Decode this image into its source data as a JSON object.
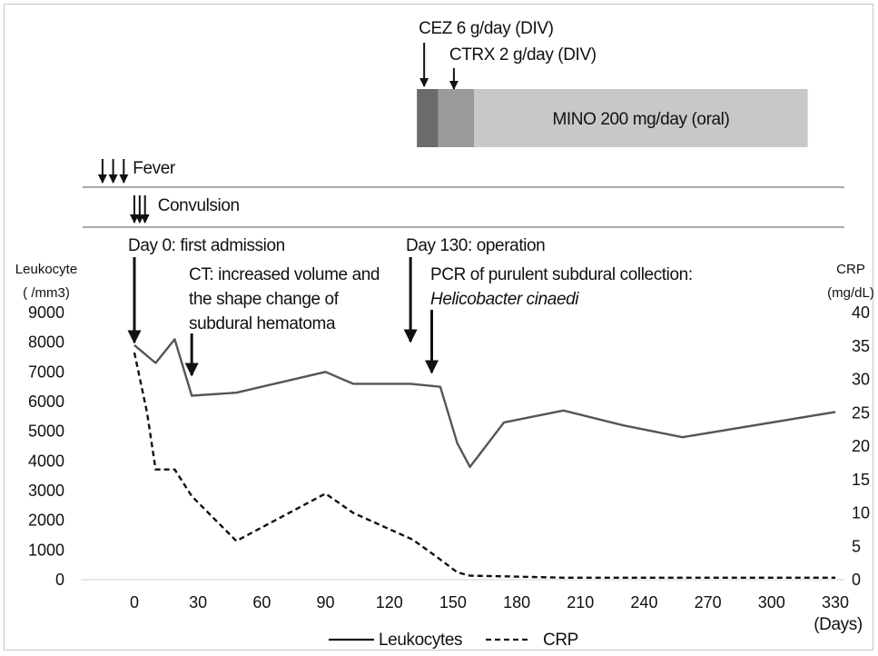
{
  "chart_data": {
    "type": "line",
    "x_label": "(Days)",
    "x_ticks": [
      0,
      30,
      60,
      90,
      120,
      150,
      180,
      210,
      240,
      270,
      300,
      330
    ],
    "x_range": [
      -25,
      330
    ],
    "left_axis": {
      "title_line1": "Leukocyte",
      "title_line2": "( /mm3)",
      "ticks": [
        0,
        1000,
        2000,
        3000,
        4000,
        5000,
        6000,
        7000,
        8000,
        9000
      ],
      "range": [
        0,
        9000
      ]
    },
    "right_axis": {
      "title_line1": "CRP",
      "title_line2": "(mg/dL)",
      "ticks": [
        0,
        5,
        10,
        15,
        20,
        25,
        30,
        35,
        40
      ],
      "range": [
        0,
        40
      ]
    },
    "series": [
      {
        "name": "Leukocytes",
        "axis": "left",
        "style": "solid",
        "x": [
          0,
          10,
          19,
          27,
          48,
          90,
          103,
          130,
          144,
          152,
          158,
          174,
          202,
          230,
          258,
          330
        ],
        "y": [
          7900,
          7300,
          8100,
          6200,
          6300,
          7000,
          6600,
          6600,
          6500,
          4600,
          3800,
          5300,
          5700,
          5200,
          4800,
          5650
        ]
      },
      {
        "name": "CRP",
        "axis": "right",
        "style": "dashed",
        "x": [
          0,
          6,
          10,
          19,
          27,
          48,
          90,
          103,
          131,
          142,
          152,
          158,
          174,
          202,
          330
        ],
        "y": [
          34,
          25,
          16.5,
          16.5,
          12.5,
          5.8,
          12.9,
          10,
          6,
          3.5,
          1.1,
          0.6,
          0.5,
          0.3,
          0.3
        ]
      }
    ],
    "legend": {
      "placement": "bottom",
      "items": [
        {
          "label": "Leukocytes",
          "style": "solid"
        },
        {
          "label": "CRP",
          "style": "dashed"
        }
      ]
    },
    "treatments": [
      {
        "label": "CEZ 6 g/day (DIV)",
        "start": 133,
        "end": 143,
        "color": "#6b6b6b",
        "show_in_bar": false
      },
      {
        "label": "CTRX 2 g/day (DIV)",
        "start": 143,
        "end": 160,
        "color": "#9a9a9a",
        "show_in_bar": false
      },
      {
        "label": "MINO 200 mg/day (oral)",
        "start": 160,
        "end": 317,
        "color": "#c8c8c8",
        "show_in_bar": true
      }
    ],
    "events": [
      {
        "label": "Fever",
        "days": [
          -15,
          -10,
          -5
        ]
      },
      {
        "label": "Convulsion",
        "days": [
          0,
          2.5,
          5
        ]
      }
    ],
    "annotations": {
      "day0": "Day 0: first admission",
      "ct_line1": "CT: increased volume and",
      "ct_line2": "the  shape change of",
      "ct_line3": "subdural hematoma",
      "day130": "Day 130: operation",
      "pcr_line1": "PCR of purulent subdural collection:",
      "pcr_line2": "Helicobacter cinaedi"
    },
    "annotation_days": {
      "day0": 0,
      "ct": 27,
      "day130": 130,
      "pcr": 140,
      "cez": 133,
      "ctrx": 150
    },
    "colors": {
      "leukocyte_line": "#555555",
      "crp_line": "#111111",
      "arrow": "#111111"
    }
  }
}
